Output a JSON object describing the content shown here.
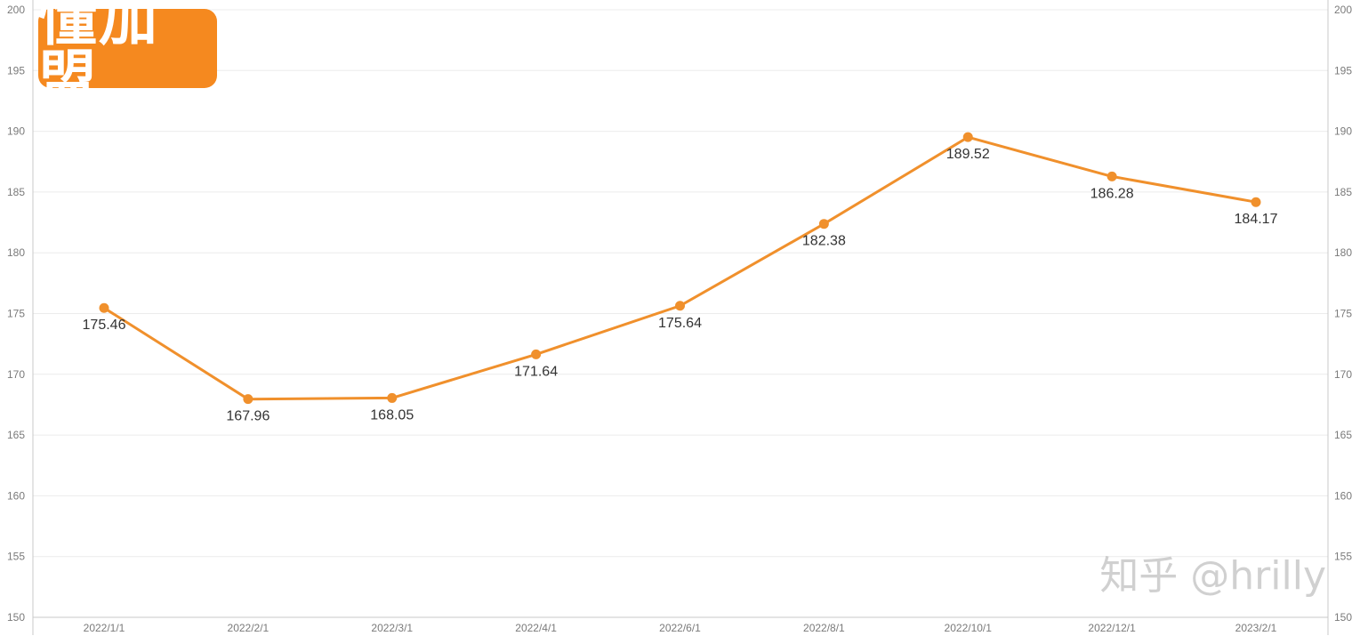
{
  "logo": {
    "text": "懂加盟"
  },
  "watermark": {
    "text": "知乎 @hrilly"
  },
  "chart_data": {
    "type": "line",
    "title": "",
    "xlabel": "",
    "ylabel": "",
    "categories": [
      "2022/1/1",
      "2022/2/1",
      "2022/3/1",
      "2022/4/1",
      "2022/6/1",
      "2022/8/1",
      "2022/10/1",
      "2022/12/1",
      "2023/2/1"
    ],
    "values": [
      175.46,
      167.96,
      168.05,
      171.64,
      175.64,
      182.38,
      189.52,
      186.28,
      184.17
    ],
    "data_labels": [
      "175.46",
      "167.96",
      "168.05",
      "171.64",
      "175.64",
      "182.38",
      "189.52",
      "186.28",
      "184.17"
    ],
    "ylim": [
      150,
      200
    ],
    "yticks": [
      150,
      155,
      160,
      165,
      170,
      175,
      180,
      185,
      190,
      195,
      200
    ],
    "secondary_y_axis": true,
    "grid": true,
    "color": "#f0902c"
  }
}
